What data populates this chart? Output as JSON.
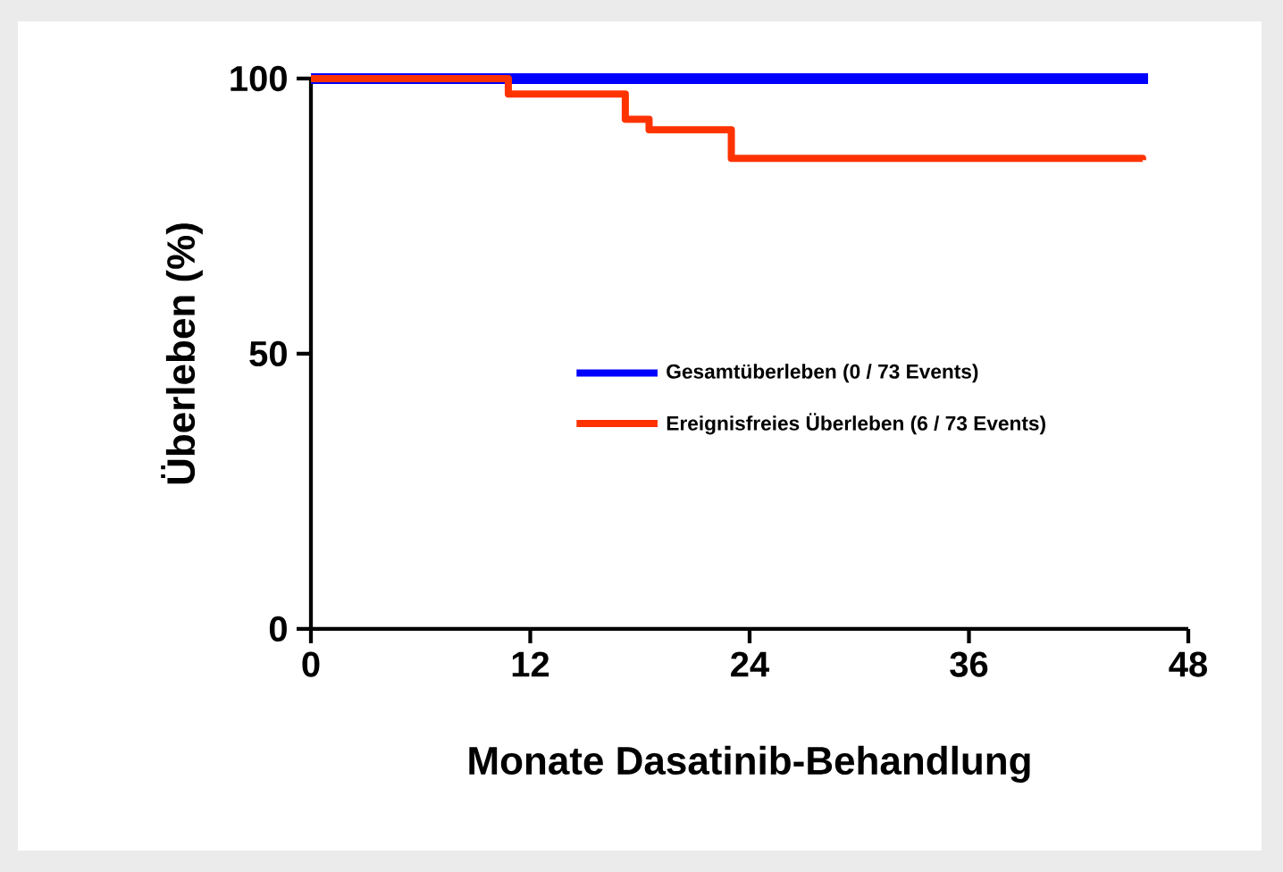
{
  "chart_data": {
    "type": "step",
    "xlabel": "Monate Dasatinib-Behandlung",
    "ylabel": "Überleben (%)",
    "xlim": [
      0,
      48
    ],
    "xticks": [
      0,
      12,
      24,
      36,
      48
    ],
    "ylim": [
      0,
      100
    ],
    "yticks": [
      0,
      50,
      100
    ],
    "legend": "right",
    "grid": false,
    "series": [
      {
        "name": "Gesamtüberleben (0 / 73 Events)",
        "color": "#0000ff",
        "x": [
          0,
          45.8
        ],
        "values": [
          100,
          100
        ]
      },
      {
        "name": "Ereignisfreies Überleben (6 / 73 Events)",
        "color": "#ff3300",
        "x": [
          0,
          10.8,
          17.2,
          18.5,
          23,
          45.5
        ],
        "values": [
          100,
          97.2,
          92.6,
          90.7,
          85.5,
          85.2
        ]
      }
    ]
  }
}
